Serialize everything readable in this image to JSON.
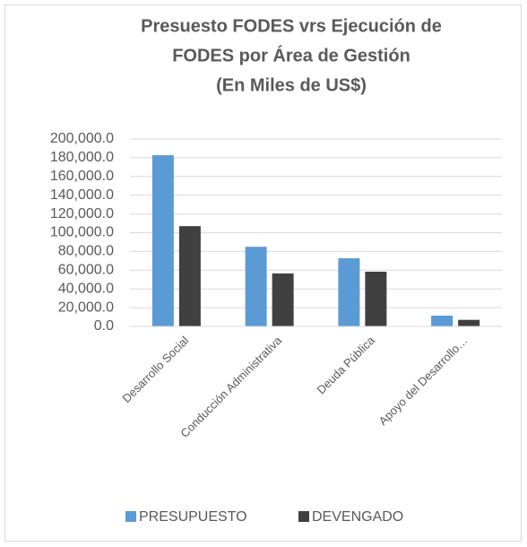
{
  "chart_data": {
    "type": "bar",
    "title": [
      "Presuesto FODES vrs Ejecución de",
      "FODES por Área de Gestión",
      "(En Miles de US$)"
    ],
    "categories": [
      "Desarrollo Social",
      "Conducción Administrativa",
      "Deuda Pública",
      "Apoyo del Desarrollo…"
    ],
    "series": [
      {
        "name": "PRESUPUESTO",
        "color": "#5b9bd5",
        "values": [
          182700,
          85000,
          72700,
          11500
        ]
      },
      {
        "name": "DEVENGADO",
        "color": "#404040",
        "values": [
          107000,
          56500,
          58400,
          7000
        ]
      }
    ],
    "ylim": [
      0,
      200000
    ],
    "yticks": [
      {
        "value": 0,
        "label": "0.0"
      },
      {
        "value": 20000,
        "label": "20,000.0"
      },
      {
        "value": 40000,
        "label": "40,000.0"
      },
      {
        "value": 60000,
        "label": "60,000.0"
      },
      {
        "value": 80000,
        "label": "80,000.0"
      },
      {
        "value": 100000,
        "label": "100,000.0"
      },
      {
        "value": 120000,
        "label": "120,000.0"
      },
      {
        "value": 140000,
        "label": "140,000.0"
      },
      {
        "value": 160000,
        "label": "160,000.0"
      },
      {
        "value": 180000,
        "label": "180,000.0"
      },
      {
        "value": 200000,
        "label": "200,000.0"
      }
    ],
    "grid": true,
    "legend": "bottom"
  }
}
